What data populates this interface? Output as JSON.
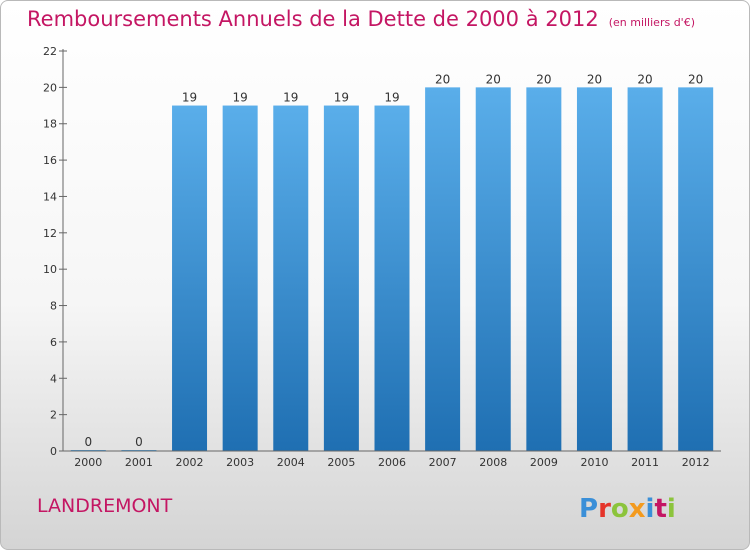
{
  "header": {
    "title": "Remboursements Annuels de la Dette de 2000 à 2012",
    "unit": "(en milliers d'€)"
  },
  "footer": {
    "commune": "LANDREMONT",
    "logo_text": "Proxiti"
  },
  "colors": {
    "title": "#c41663",
    "bar_top": "#5aaeea",
    "bar_bottom": "#1f6fb2",
    "logo_p": "#3a8fd8",
    "logo_r": "#e5342a",
    "logo_o": "#8cc43c",
    "logo_x": "#f39a1e",
    "logo_i": "#3a8fd8",
    "logo_t": "#c41663",
    "logo_i2": "#8cc43c"
  },
  "chart_data": {
    "type": "bar",
    "categories": [
      "2000",
      "2001",
      "2002",
      "2003",
      "2004",
      "2005",
      "2006",
      "2007",
      "2008",
      "2009",
      "2010",
      "2011",
      "2012"
    ],
    "values": [
      0,
      0,
      19,
      19,
      19,
      19,
      19,
      20,
      20,
      20,
      20,
      20,
      20
    ],
    "ylim": [
      0,
      22
    ],
    "yticks": [
      0,
      2,
      4,
      6,
      8,
      10,
      12,
      14,
      16,
      18,
      20,
      22
    ],
    "grid": false,
    "data_labels": true
  }
}
